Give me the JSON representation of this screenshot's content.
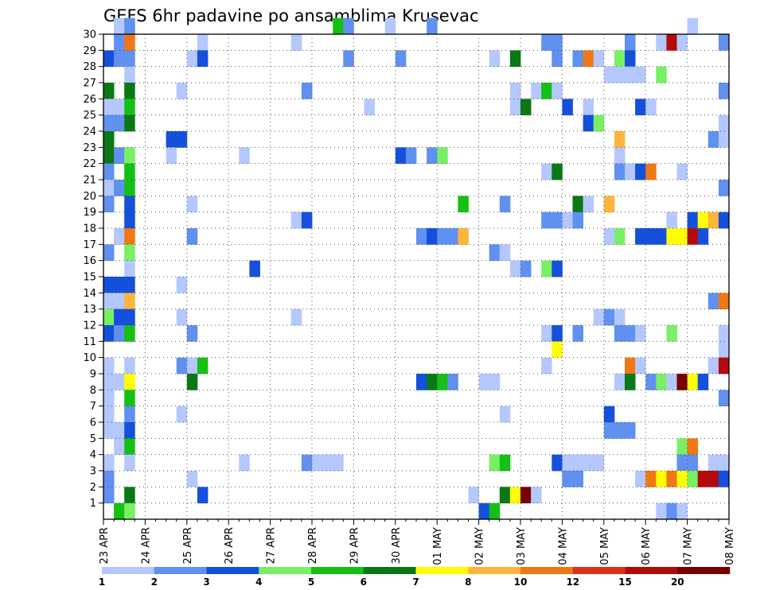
{
  "chart_data": {
    "type": "heatmap",
    "title": "GEFS 6hr padavine po ansamblima Krusevac",
    "xlabel": "",
    "ylabel": "",
    "x_tick_labels": [
      "23 APR",
      "24 APR",
      "25 APR",
      "26 APR",
      "27 APR",
      "28 APR",
      "29 APR",
      "30 APR",
      "01 MAY",
      "02 MAY",
      "03 MAY",
      "04 MAY",
      "05 MAY",
      "06 MAY",
      "07 MAY",
      "08 MAY"
    ],
    "y_tick_labels": [
      "1",
      "2",
      "3",
      "4",
      "5",
      "6",
      "7",
      "8",
      "9",
      "10",
      "11",
      "12",
      "13",
      "14",
      "15",
      "16",
      "17",
      "18",
      "19",
      "20",
      "21",
      "22",
      "23",
      "24",
      "25",
      "26",
      "27",
      "28",
      "29",
      "30"
    ],
    "xlim": [
      0,
      60
    ],
    "ylim": [
      0,
      30
    ],
    "grid": true,
    "x_unit": "6-hour steps from 23 APR",
    "y_unit": "ensemble member",
    "legend": {
      "position": "bottom",
      "labels": [
        "1",
        "2",
        "3",
        "4",
        "5",
        "6",
        "7",
        "8",
        "10",
        "12",
        "15",
        "20"
      ],
      "colors": [
        "#b4c8ff",
        "#6090f0",
        "#1450dc",
        "#78f064",
        "#14c014",
        "#0a7814",
        "#ffff00",
        "#ffb43c",
        "#f07814",
        "#dc3218",
        "#b40a0a",
        "#780000"
      ]
    },
    "cells": [
      [
        1,
        30,
        1
      ],
      [
        2,
        30,
        2
      ],
      [
        22,
        30,
        5
      ],
      [
        23,
        30,
        2
      ],
      [
        27,
        30,
        1
      ],
      [
        31,
        30,
        2
      ],
      [
        56,
        30,
        1
      ],
      [
        1,
        29,
        2
      ],
      [
        2,
        29,
        9
      ],
      [
        9,
        29,
        1
      ],
      [
        18,
        29,
        1
      ],
      [
        42,
        29,
        2
      ],
      [
        43,
        29,
        2
      ],
      [
        50,
        29,
        2
      ],
      [
        53,
        29,
        1
      ],
      [
        54,
        29,
        11
      ],
      [
        55,
        29,
        1
      ],
      [
        59,
        29,
        2
      ],
      [
        0,
        28,
        3
      ],
      [
        1,
        28,
        2
      ],
      [
        2,
        28,
        2
      ],
      [
        8,
        28,
        1
      ],
      [
        9,
        28,
        3
      ],
      [
        23,
        28,
        2
      ],
      [
        28,
        28,
        2
      ],
      [
        37,
        28,
        1
      ],
      [
        39,
        28,
        6
      ],
      [
        43,
        28,
        2
      ],
      [
        45,
        28,
        2
      ],
      [
        46,
        28,
        9
      ],
      [
        47,
        28,
        1
      ],
      [
        49,
        28,
        4
      ],
      [
        50,
        28,
        3
      ],
      [
        2,
        27,
        1
      ],
      [
        48,
        27,
        1
      ],
      [
        49,
        27,
        1
      ],
      [
        50,
        27,
        1
      ],
      [
        51,
        27,
        1
      ],
      [
        53,
        27,
        4
      ],
      [
        0,
        26,
        6
      ],
      [
        2,
        26,
        6
      ],
      [
        7,
        26,
        1
      ],
      [
        19,
        26,
        2
      ],
      [
        39,
        26,
        1
      ],
      [
        41,
        26,
        1
      ],
      [
        42,
        26,
        5
      ],
      [
        43,
        26,
        1
      ],
      [
        59,
        26,
        2
      ],
      [
        0,
        25,
        1
      ],
      [
        1,
        25,
        1
      ],
      [
        2,
        25,
        5
      ],
      [
        25,
        25,
        1
      ],
      [
        39,
        25,
        1
      ],
      [
        40,
        25,
        6
      ],
      [
        44,
        25,
        3
      ],
      [
        46,
        25,
        1
      ],
      [
        51,
        25,
        3
      ],
      [
        52,
        25,
        1
      ],
      [
        0,
        24,
        2
      ],
      [
        1,
        24,
        2
      ],
      [
        2,
        24,
        6
      ],
      [
        46,
        24,
        3
      ],
      [
        47,
        24,
        4
      ],
      [
        59,
        24,
        1
      ],
      [
        0,
        23,
        6
      ],
      [
        6,
        23,
        3
      ],
      [
        7,
        23,
        3
      ],
      [
        49,
        23,
        8
      ],
      [
        58,
        23,
        2
      ],
      [
        59,
        23,
        1
      ],
      [
        0,
        22,
        6
      ],
      [
        1,
        22,
        2
      ],
      [
        2,
        22,
        4
      ],
      [
        6,
        22,
        1
      ],
      [
        13,
        22,
        1
      ],
      [
        28,
        22,
        3
      ],
      [
        29,
        22,
        2
      ],
      [
        31,
        22,
        2
      ],
      [
        32,
        22,
        4
      ],
      [
        49,
        22,
        1
      ],
      [
        0,
        21,
        2
      ],
      [
        2,
        21,
        5
      ],
      [
        42,
        21,
        1
      ],
      [
        43,
        21,
        6
      ],
      [
        49,
        21,
        2
      ],
      [
        50,
        21,
        1
      ],
      [
        51,
        21,
        3
      ],
      [
        52,
        21,
        9
      ],
      [
        55,
        21,
        1
      ],
      [
        0,
        20,
        1
      ],
      [
        1,
        20,
        2
      ],
      [
        2,
        20,
        5
      ],
      [
        59,
        20,
        2
      ],
      [
        0,
        19,
        2
      ],
      [
        2,
        19,
        3
      ],
      [
        8,
        19,
        1
      ],
      [
        34,
        19,
        5
      ],
      [
        38,
        19,
        2
      ],
      [
        45,
        19,
        6
      ],
      [
        46,
        19,
        1
      ],
      [
        48,
        19,
        8
      ],
      [
        2,
        18,
        3
      ],
      [
        18,
        18,
        1
      ],
      [
        19,
        18,
        3
      ],
      [
        42,
        18,
        2
      ],
      [
        43,
        18,
        2
      ],
      [
        44,
        18,
        1
      ],
      [
        45,
        18,
        2
      ],
      [
        54,
        18,
        1
      ],
      [
        56,
        18,
        3
      ],
      [
        57,
        18,
        7
      ],
      [
        58,
        18,
        8
      ],
      [
        59,
        18,
        3
      ],
      [
        1,
        17,
        1
      ],
      [
        2,
        17,
        9
      ],
      [
        8,
        17,
        2
      ],
      [
        30,
        17,
        2
      ],
      [
        31,
        17,
        3
      ],
      [
        32,
        17,
        2
      ],
      [
        33,
        17,
        2
      ],
      [
        34,
        17,
        8
      ],
      [
        48,
        17,
        1
      ],
      [
        49,
        17,
        4
      ],
      [
        51,
        17,
        3
      ],
      [
        52,
        17,
        3
      ],
      [
        53,
        17,
        3
      ],
      [
        54,
        17,
        7
      ],
      [
        55,
        17,
        7
      ],
      [
        56,
        17,
        11
      ],
      [
        57,
        17,
        3
      ],
      [
        0,
        16,
        2
      ],
      [
        2,
        16,
        4
      ],
      [
        37,
        16,
        2
      ],
      [
        38,
        16,
        1
      ],
      [
        2,
        15,
        1
      ],
      [
        14,
        15,
        3
      ],
      [
        39,
        15,
        1
      ],
      [
        40,
        15,
        2
      ],
      [
        42,
        15,
        4
      ],
      [
        43,
        15,
        3
      ],
      [
        0,
        14,
        3
      ],
      [
        1,
        14,
        3
      ],
      [
        2,
        14,
        3
      ],
      [
        7,
        14,
        1
      ],
      [
        0,
        13,
        1
      ],
      [
        1,
        13,
        1
      ],
      [
        2,
        13,
        8
      ],
      [
        58,
        13,
        2
      ],
      [
        59,
        13,
        9
      ],
      [
        0,
        12,
        4
      ],
      [
        1,
        12,
        3
      ],
      [
        2,
        12,
        3
      ],
      [
        7,
        12,
        1
      ],
      [
        18,
        12,
        1
      ],
      [
        47,
        12,
        1
      ],
      [
        48,
        12,
        2
      ],
      [
        49,
        12,
        1
      ],
      [
        0,
        11,
        3
      ],
      [
        1,
        11,
        2
      ],
      [
        2,
        11,
        5
      ],
      [
        8,
        11,
        2
      ],
      [
        42,
        11,
        1
      ],
      [
        43,
        11,
        3
      ],
      [
        45,
        11,
        2
      ],
      [
        49,
        11,
        2
      ],
      [
        50,
        11,
        2
      ],
      [
        51,
        11,
        1
      ],
      [
        54,
        11,
        4
      ],
      [
        59,
        11,
        1
      ],
      [
        43,
        10,
        7
      ],
      [
        59,
        10,
        1
      ],
      [
        0,
        9,
        1
      ],
      [
        2,
        9,
        1
      ],
      [
        7,
        9,
        2
      ],
      [
        8,
        9,
        1
      ],
      [
        9,
        9,
        5
      ],
      [
        42,
        9,
        1
      ],
      [
        50,
        9,
        9
      ],
      [
        51,
        9,
        1
      ],
      [
        58,
        9,
        1
      ],
      [
        59,
        9,
        11
      ],
      [
        0,
        8,
        1
      ],
      [
        1,
        8,
        1
      ],
      [
        2,
        8,
        7
      ],
      [
        8,
        8,
        6
      ],
      [
        30,
        8,
        3
      ],
      [
        31,
        8,
        6
      ],
      [
        32,
        8,
        5
      ],
      [
        33,
        8,
        2
      ],
      [
        36,
        8,
        1
      ],
      [
        37,
        8,
        1
      ],
      [
        49,
        8,
        1
      ],
      [
        50,
        8,
        6
      ],
      [
        52,
        8,
        2
      ],
      [
        53,
        8,
        4
      ],
      [
        54,
        8,
        1
      ],
      [
        55,
        8,
        12
      ],
      [
        56,
        8,
        7
      ],
      [
        57,
        8,
        3
      ],
      [
        0,
        7,
        1
      ],
      [
        2,
        7,
        5
      ],
      [
        59,
        7,
        2
      ],
      [
        0,
        6,
        1
      ],
      [
        2,
        6,
        2
      ],
      [
        7,
        6,
        1
      ],
      [
        38,
        6,
        1
      ],
      [
        48,
        6,
        3
      ],
      [
        0,
        5,
        1
      ],
      [
        1,
        5,
        1
      ],
      [
        2,
        5,
        3
      ],
      [
        48,
        5,
        2
      ],
      [
        49,
        5,
        2
      ],
      [
        50,
        5,
        2
      ],
      [
        1,
        4,
        1
      ],
      [
        2,
        4,
        5
      ],
      [
        55,
        4,
        4
      ],
      [
        56,
        4,
        9
      ],
      [
        0,
        3,
        1
      ],
      [
        2,
        3,
        1
      ],
      [
        13,
        3,
        1
      ],
      [
        19,
        3,
        2
      ],
      [
        20,
        3,
        1
      ],
      [
        21,
        3,
        1
      ],
      [
        22,
        3,
        1
      ],
      [
        37,
        3,
        4
      ],
      [
        38,
        3,
        5
      ],
      [
        43,
        3,
        3
      ],
      [
        44,
        3,
        1
      ],
      [
        45,
        3,
        1
      ],
      [
        46,
        3,
        1
      ],
      [
        47,
        3,
        1
      ],
      [
        55,
        3,
        2
      ],
      [
        56,
        3,
        2
      ],
      [
        58,
        3,
        1
      ],
      [
        59,
        3,
        1
      ],
      [
        0,
        2,
        2
      ],
      [
        8,
        2,
        1
      ],
      [
        44,
        2,
        2
      ],
      [
        45,
        2,
        2
      ],
      [
        51,
        2,
        1
      ],
      [
        52,
        2,
        9
      ],
      [
        53,
        2,
        7
      ],
      [
        54,
        2,
        9
      ],
      [
        55,
        2,
        7
      ],
      [
        56,
        2,
        4
      ],
      [
        57,
        2,
        11
      ],
      [
        58,
        2,
        11
      ],
      [
        59,
        2,
        3
      ],
      [
        0,
        1,
        2
      ],
      [
        2,
        1,
        6
      ],
      [
        9,
        1,
        3
      ],
      [
        35,
        1,
        1
      ],
      [
        38,
        1,
        6
      ],
      [
        39,
        1,
        7
      ],
      [
        40,
        1,
        12
      ],
      [
        41,
        1,
        1
      ],
      [
        1,
        0,
        5
      ],
      [
        2,
        0,
        4
      ],
      [
        36,
        0,
        3
      ],
      [
        37,
        0,
        5
      ],
      [
        53,
        0,
        1
      ],
      [
        54,
        0,
        2
      ],
      [
        55,
        0,
        1
      ]
    ]
  }
}
